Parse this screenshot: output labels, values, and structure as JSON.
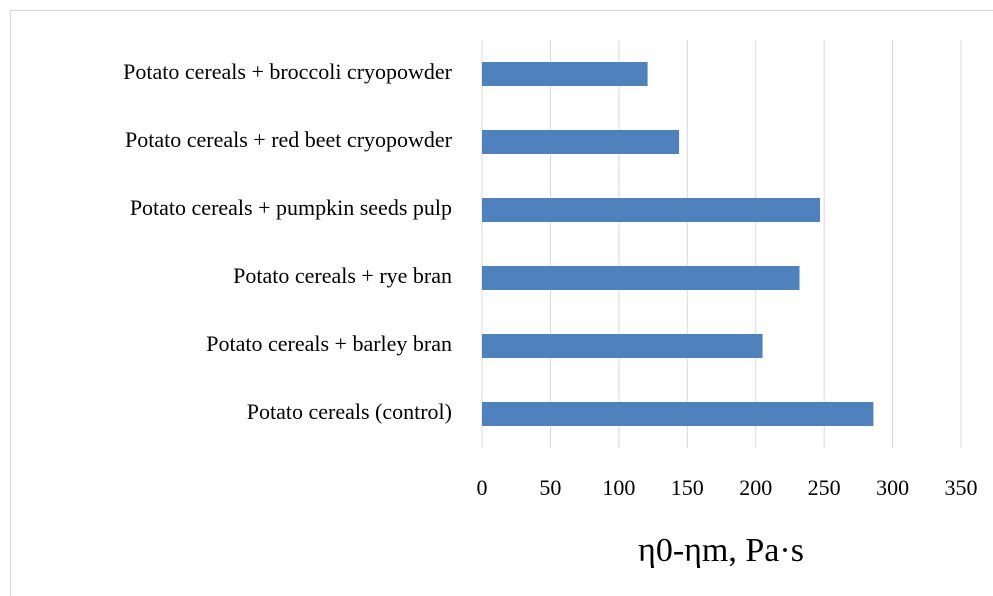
{
  "chart_data": {
    "type": "barh",
    "categories": [
      "Potato cereals (control)",
      "Potato cereals + barley bran",
      "Potato cereals + rye bran",
      "Potato cereals + pumpkin seeds pulp",
      "Potato cereals + red beet cryopowder",
      "Potato cereals + broccoli cryopowder"
    ],
    "values": [
      286,
      205,
      232,
      247,
      144,
      121
    ],
    "color": "#4f81bd",
    "x_label": "η0-ηm, Pa·s",
    "xlim": [
      0,
      350
    ],
    "xticks": [
      0,
      50,
      100,
      150,
      200,
      250,
      300,
      350
    ],
    "grid": true
  }
}
